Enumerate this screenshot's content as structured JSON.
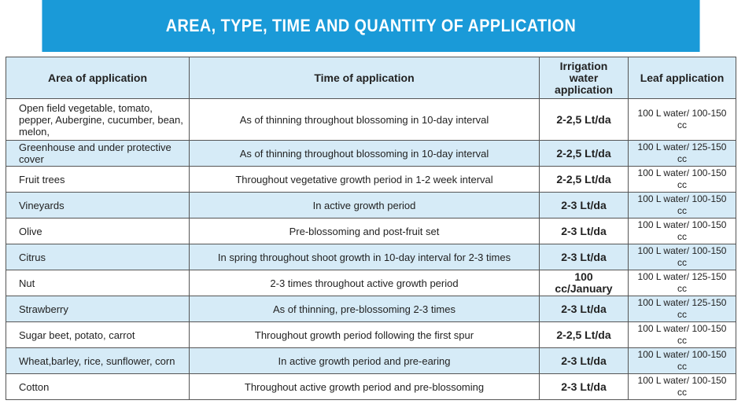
{
  "title": "AREA, TYPE, TIME AND QUANTITY OF APPLICATION",
  "headers": [
    "Area of application",
    "Time of application",
    "Irrigation water application",
    "Leaf application"
  ],
  "rows": [
    {
      "area": "Open field vegetable, tomato, pepper, Aubergine, cucumber, bean, melon,",
      "time": "As of thinning throughout blossoming in 10-day interval",
      "irrigation": "2-2,5 Lt/da",
      "leaf": "100 L water/ 100-150 cc"
    },
    {
      "area": "Greenhouse and under protective cover",
      "time": "As of thinning throughout blossoming in 10-day interval",
      "irrigation": "2-2,5 Lt/da",
      "leaf": "100 L water/ 125-150 cc"
    },
    {
      "area": "Fruit trees",
      "time": "Throughout vegetative growth period in 1-2 week interval",
      "irrigation": "2-2,5 Lt/da",
      "leaf": "100 L water/ 100-150 cc"
    },
    {
      "area": "Vineyards",
      "time": "In active growth period",
      "irrigation": "2-3 Lt/da",
      "leaf": "100 L water/ 100-150 cc"
    },
    {
      "area": "Olive",
      "time": "Pre-blossoming and post-fruit set",
      "irrigation": "2-3 Lt/da",
      "leaf": "100 L water/ 100-150 cc"
    },
    {
      "area": "Citrus",
      "time": "In spring throughout shoot growth in 10-day interval for 2-3 times",
      "irrigation": "2-3 Lt/da",
      "leaf": "100 L water/ 100-150 cc"
    },
    {
      "area": "Nut",
      "time": "2-3 times throughout active growth period",
      "irrigation": "100 cc/January",
      "leaf": "100 L water/ 125-150 cc"
    },
    {
      "area": "Strawberry",
      "time": "As of thinning, pre-blossoming 2-3 times",
      "irrigation": "2-3 Lt/da",
      "leaf": "100 L water/ 125-150 cc"
    },
    {
      "area": "Sugar beet, potato, carrot",
      "time": "Throughout growth period following the first spur",
      "irrigation": "2-2,5 Lt/da",
      "leaf": "100 L water/ 100-150 cc"
    },
    {
      "area": "Wheat,barley, rice, sunflower, corn",
      "time": "In active growth period and pre-earing",
      "irrigation": "2-3 Lt/da",
      "leaf": "100 L water/ 100-150 cc"
    },
    {
      "area": "Cotton",
      "time": "Throughout active growth period and pre-blossoming",
      "irrigation": "2-3 Lt/da",
      "leaf": "100 L water/ 100-150 cc"
    }
  ]
}
